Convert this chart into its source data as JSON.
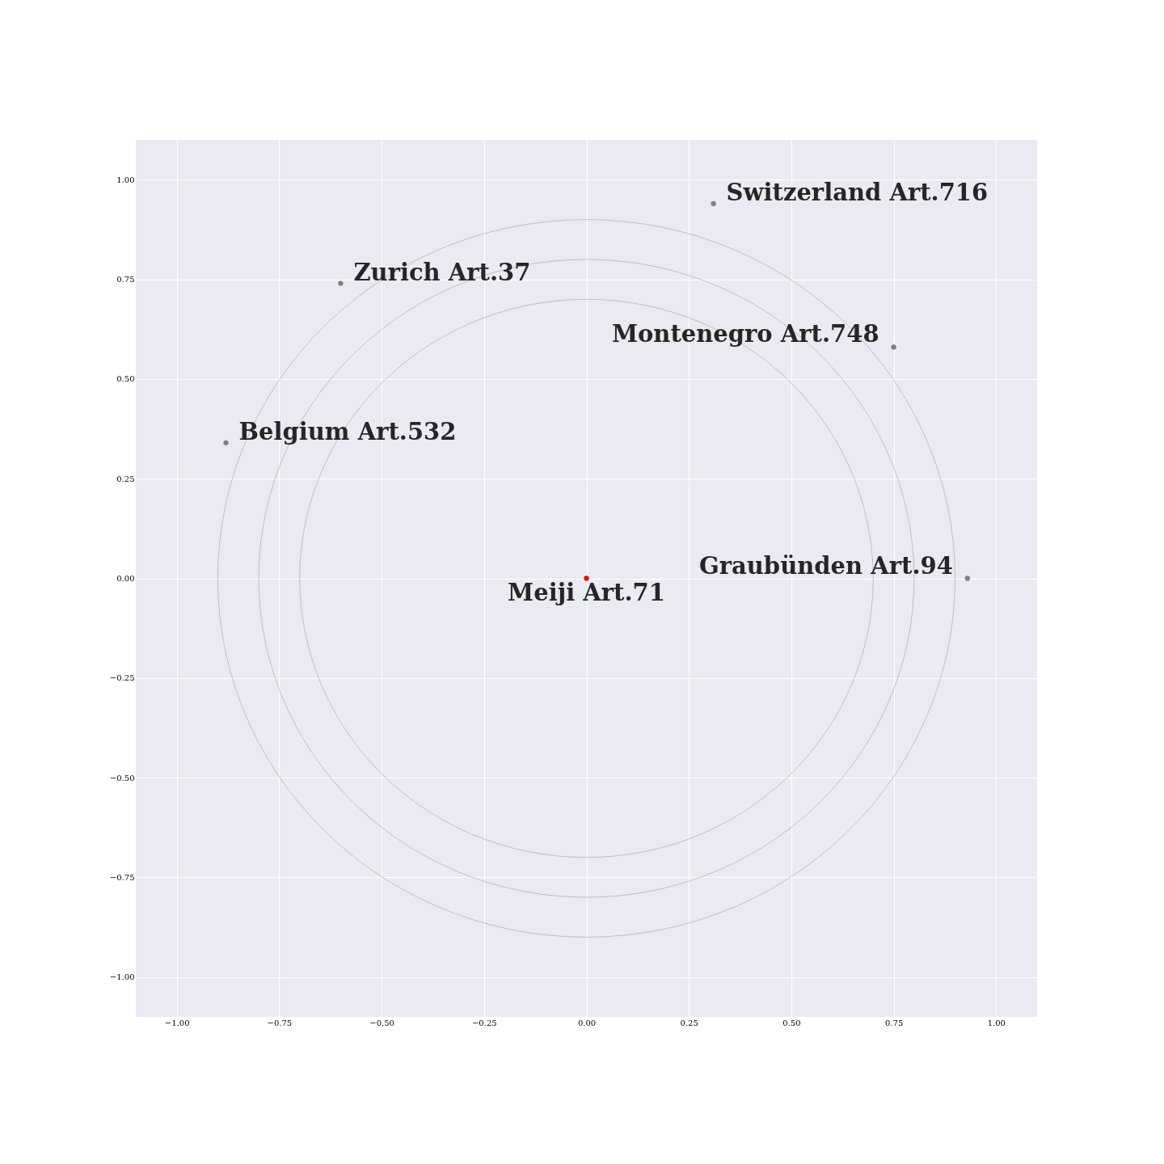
{
  "chart_data": {
    "type": "scatter",
    "xlim": [
      -1.1,
      1.1
    ],
    "ylim": [
      -1.1,
      1.1
    ],
    "grid": true,
    "xticks": [
      {
        "value": -1,
        "label": "−1.00"
      },
      {
        "value": -0.75,
        "label": "−0.75"
      },
      {
        "value": -0.5,
        "label": "−0.50"
      },
      {
        "value": -0.25,
        "label": "−0.25"
      },
      {
        "value": 0,
        "label": "0.00"
      },
      {
        "value": 0.25,
        "label": "0.25"
      },
      {
        "value": 0.5,
        "label": "0.50"
      },
      {
        "value": 0.75,
        "label": "0.75"
      },
      {
        "value": 1,
        "label": "1.00"
      }
    ],
    "yticks": [
      {
        "value": -1,
        "label": "−1.00"
      },
      {
        "value": -0.75,
        "label": "−0.75"
      },
      {
        "value": -0.5,
        "label": "−0.50"
      },
      {
        "value": -0.25,
        "label": "−0.25"
      },
      {
        "value": 0,
        "label": "0.00"
      },
      {
        "value": 0.25,
        "label": "0.25"
      },
      {
        "value": 0.5,
        "label": "0.50"
      },
      {
        "value": 0.75,
        "label": "0.75"
      },
      {
        "value": 1,
        "label": "1.00"
      }
    ],
    "series": [
      {
        "x": [
          0,
          0.93,
          0.75,
          -0.88,
          -0.6,
          0.31
        ],
        "values": [
          0,
          0,
          0.58,
          0.34,
          0.74,
          0.94
        ],
        "colors": [
          "#ff0000",
          "#808080",
          "#808080",
          "#808080",
          "#808080",
          "#808080"
        ]
      }
    ],
    "annotations": [
      {
        "text": "Meiji Art.71",
        "x": 0,
        "y": 0
      },
      {
        "text": "Graubünden Art.94",
        "x": 0.93,
        "y": 0
      },
      {
        "text": "Montenegro Art.748",
        "x": 0.75,
        "y": 0.58
      },
      {
        "text": "Belgium Art.532",
        "x": -0.88,
        "y": 0.34
      },
      {
        "text": "Zurich Art.37",
        "x": -0.6,
        "y": 0.74
      },
      {
        "text": "Switzerland Art.716",
        "x": 0.31,
        "y": 0.94
      }
    ]
  }
}
